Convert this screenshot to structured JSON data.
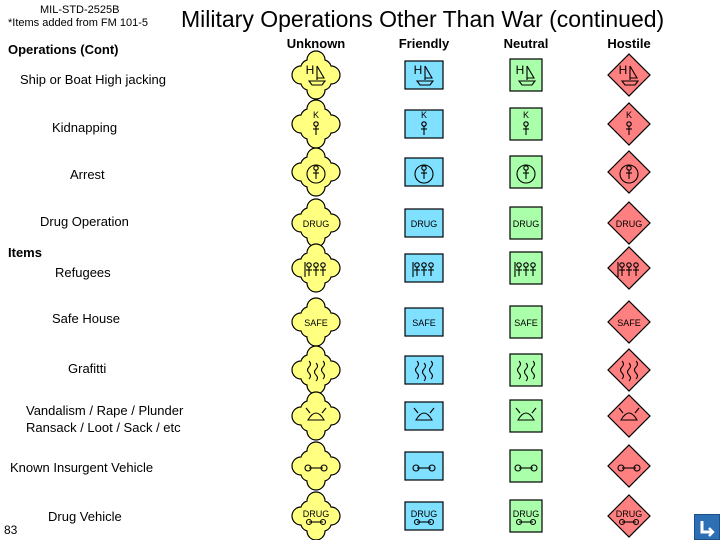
{
  "header": {
    "standard": "MIL-STD-2525B",
    "note": "*Items added from FM 101-5",
    "title": "Military Operations Other Than War (continued)"
  },
  "section_label": "Operations (Cont)",
  "items_label": "Items",
  "columns": [
    "Unknown",
    "Friendly",
    "Neutral",
    "Hostile"
  ],
  "frame_colors": {
    "unknown": "#ffff80",
    "friendly": "#80e0ff",
    "neutral": "#aaffaa",
    "hostile": "#ff8080"
  },
  "rows": [
    {
      "label": "Ship or Boat High jacking",
      "icon": "ship-hijack-icon",
      "text": "H"
    },
    {
      "label": "Kidnapping",
      "icon": "kidnapping-icon",
      "text": "K"
    },
    {
      "label": "Arrest",
      "icon": "arrest-icon",
      "text": ""
    },
    {
      "label": "Drug Operation",
      "icon": "drug-text-icon",
      "text": "DRUG"
    },
    {
      "label": "Refugees",
      "icon": "refugees-icon",
      "text": ""
    },
    {
      "label": "Safe House",
      "icon": "safe-house-icon",
      "text": "SAFE"
    },
    {
      "label": "Grafitti",
      "icon": "graffiti-icon",
      "text": ""
    },
    {
      "label": "Vandalism / Rape / Plunder",
      "label2": "Ransack / Loot / Sack / etc",
      "icon": "vandalism-icon",
      "text": ""
    },
    {
      "label": "Known Insurgent Vehicle",
      "icon": "vehicle-icon",
      "text": ""
    },
    {
      "label": "Drug Vehicle",
      "icon": "drug-vehicle-icon",
      "text": "DRUG"
    }
  ],
  "page_number": "83",
  "home_button": "home-return-icon"
}
